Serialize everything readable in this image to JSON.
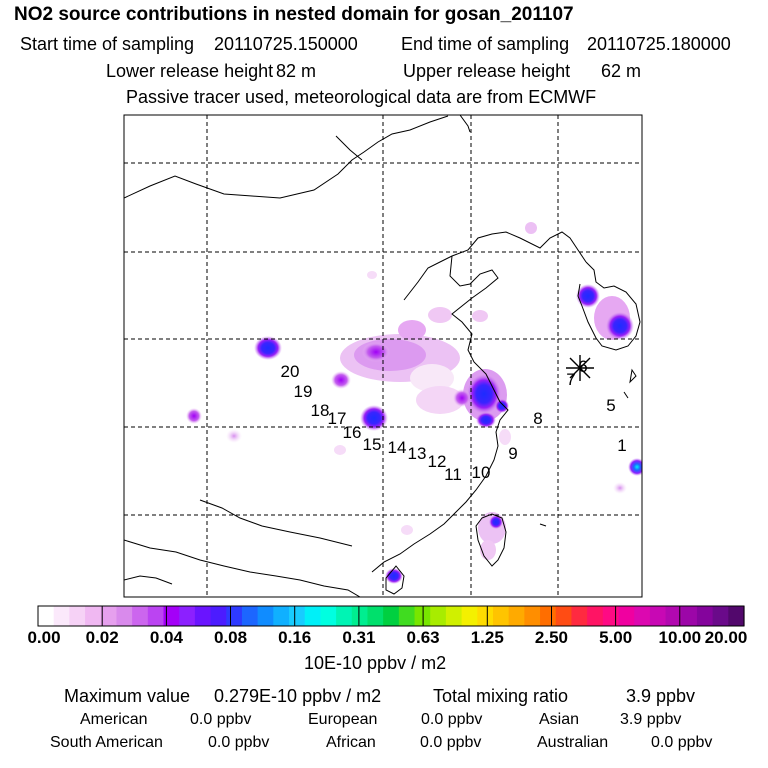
{
  "header": {
    "title": "NO2 source contributions in nested domain for gosan_201107",
    "start_label": "Start time of sampling",
    "start_value": "20110725.150000",
    "end_label": "End time of sampling",
    "end_value": "20110725.180000",
    "lower_label": "Lower release height",
    "lower_value": "82 m",
    "upper_label": "Upper release height",
    "upper_value": "62 m",
    "note": "Passive tracer used, meteorological data are from ECMWF"
  },
  "map": {
    "receptor_symbol": "*",
    "trajectory_labels": [
      "1",
      "5",
      "6",
      "7",
      "8",
      "9",
      "10",
      "11",
      "12",
      "13",
      "14",
      "15",
      "16",
      "17",
      "18",
      "19",
      "20"
    ]
  },
  "colorbar": {
    "tick_labels": [
      "0.00",
      "0.02",
      "0.04",
      "0.08",
      "0.16",
      "0.31",
      "0.63",
      "1.25",
      "2.50",
      "5.00",
      "10.00",
      "20.00"
    ],
    "colors": [
      "#ffffff",
      "#fbe9fb",
      "#f6d2f6",
      "#f0b8f2",
      "#e6a0ee",
      "#d98aec",
      "#cc66ee",
      "#bb44f2",
      "#a400f8",
      "#8c20ff",
      "#6a14ff",
      "#4c1cff",
      "#2e3aff",
      "#1c66ff",
      "#108cff",
      "#10b0ff",
      "#18ccff",
      "#00f0f8",
      "#00ffe0",
      "#00f4b4",
      "#00ee90",
      "#00e06c",
      "#00d040",
      "#40dc20",
      "#78e600",
      "#a8ec00",
      "#d0f000",
      "#f4f000",
      "#ffdc00",
      "#ffc400",
      "#ffaa00",
      "#ff8e00",
      "#ff6e00",
      "#ff4c14",
      "#ff2a40",
      "#ff1464",
      "#ff0a84",
      "#f000a0",
      "#dc08b0",
      "#c808b4",
      "#b208b0",
      "#9c06a8",
      "#84049c",
      "#6a0a8a",
      "#52086c"
    ],
    "unit": "10E-10 ppbv / m2"
  },
  "stats": {
    "max_label": "Maximum value",
    "max_value": "0.279E-10 ppbv / m2",
    "total_label": "Total mixing ratio",
    "total_value": "3.9 ppbv",
    "regions": [
      {
        "name": "American",
        "value": "0.0 ppbv"
      },
      {
        "name": "European",
        "value": "0.0 ppbv"
      },
      {
        "name": "Asian",
        "value": "3.9 ppbv"
      },
      {
        "name": "South American",
        "value": "0.0 ppbv"
      },
      {
        "name": "African",
        "value": "0.0 ppbv"
      },
      {
        "name": "Australian",
        "value": "0.0 ppbv"
      }
    ]
  }
}
